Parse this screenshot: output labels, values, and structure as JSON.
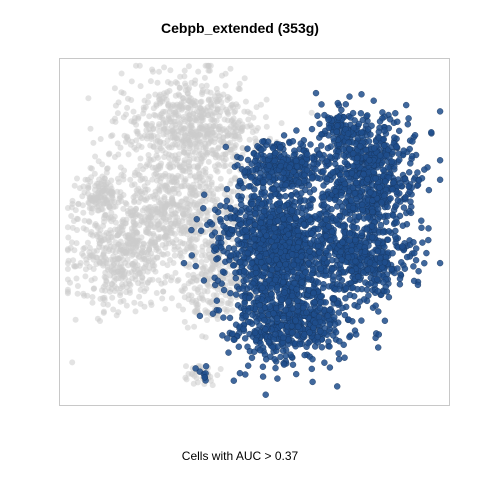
{
  "chart_data": {
    "type": "scatter",
    "title": "Cebpb_extended (353g)",
    "caption": "Cells with AUC > 0.37",
    "xlabel": "",
    "ylabel": "",
    "xlim": [
      0,
      100
    ],
    "ylim": [
      0,
      100
    ],
    "grid": false,
    "legend": "none",
    "seed": 37,
    "series": [
      {
        "role": "below-threshold",
        "color": "#cccccc",
        "clusters": [
          {
            "cx": 33,
            "cy": 80,
            "sx": 9,
            "sy": 8,
            "n": 720
          },
          {
            "cx": 28,
            "cy": 55,
            "sx": 10,
            "sy": 7,
            "n": 560
          },
          {
            "cx": 14,
            "cy": 42,
            "sx": 7,
            "sy": 8,
            "n": 420
          },
          {
            "cx": 8,
            "cy": 61,
            "sx": 3,
            "sy": 3,
            "n": 110
          },
          {
            "cx": 40,
            "cy": 35,
            "sx": 6,
            "sy": 6,
            "n": 240
          },
          {
            "cx": 36,
            "cy": 7,
            "sx": 1.6,
            "sy": 1.5,
            "n": 40
          }
        ]
      },
      {
        "role": "above-threshold",
        "color": "#1f4e8c",
        "clusters": [
          {
            "cx": 56,
            "cy": 46,
            "sx": 8,
            "sy": 9,
            "n": 900
          },
          {
            "cx": 80,
            "cy": 67,
            "sx": 7,
            "sy": 9,
            "n": 700
          },
          {
            "cx": 60,
            "cy": 24,
            "sx": 8,
            "sy": 7,
            "n": 620
          },
          {
            "cx": 79,
            "cy": 42,
            "sx": 7,
            "sy": 6,
            "n": 420
          },
          {
            "cx": 57,
            "cy": 69,
            "sx": 5,
            "sy": 4,
            "n": 260
          },
          {
            "cx": 73,
            "cy": 81,
            "sx": 2.5,
            "sy": 3,
            "n": 70
          },
          {
            "cx": 36,
            "cy": 7,
            "sx": 1,
            "sy": 1,
            "n": 8
          }
        ]
      }
    ]
  }
}
